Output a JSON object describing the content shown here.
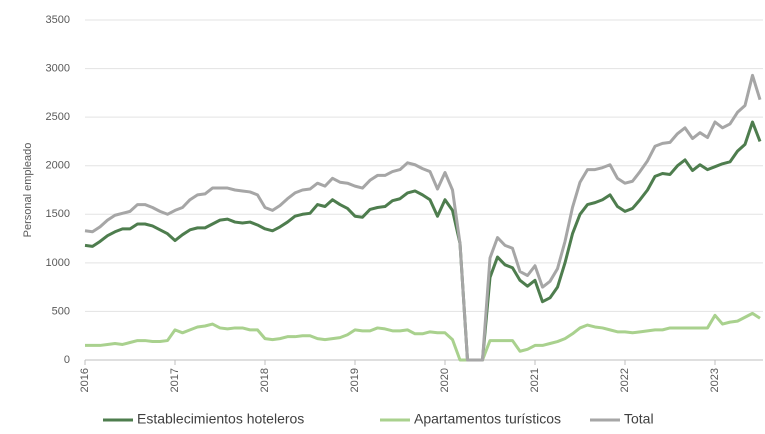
{
  "chart_data": {
    "type": "line",
    "y_label": "Personal empleado",
    "categories": [
      "2016",
      null,
      null,
      null,
      null,
      null,
      null,
      null,
      null,
      null,
      null,
      null,
      "2017",
      null,
      null,
      null,
      null,
      null,
      null,
      null,
      null,
      null,
      null,
      null,
      "2018",
      null,
      null,
      null,
      null,
      null,
      null,
      null,
      null,
      null,
      null,
      null,
      "2019",
      null,
      null,
      null,
      null,
      null,
      null,
      null,
      null,
      null,
      null,
      null,
      "2020",
      null,
      null,
      null,
      null,
      null,
      null,
      null,
      null,
      null,
      null,
      null,
      "2021",
      null,
      null,
      null,
      null,
      null,
      null,
      null,
      null,
      null,
      null,
      null,
      "2022",
      null,
      null,
      null,
      null,
      null,
      null,
      null,
      null,
      null,
      null,
      null,
      "2023",
      null,
      null,
      null,
      null,
      null,
      null
    ],
    "series": [
      {
        "name": "Establecimientos hoteleros",
        "color": "#4e7d4e",
        "values": [
          1180,
          1170,
          1220,
          1280,
          1320,
          1350,
          1350,
          1400,
          1400,
          1380,
          1340,
          1300,
          1230,
          1290,
          1340,
          1360,
          1360,
          1400,
          1440,
          1450,
          1420,
          1410,
          1420,
          1390,
          1350,
          1330,
          1370,
          1420,
          1480,
          1500,
          1510,
          1600,
          1580,
          1650,
          1600,
          1560,
          1480,
          1470,
          1550,
          1570,
          1580,
          1640,
          1660,
          1720,
          1740,
          1700,
          1650,
          1480,
          1650,
          1540,
          1200,
          0,
          0,
          0,
          850,
          1060,
          980,
          950,
          820,
          760,
          820,
          600,
          640,
          750,
          1000,
          1300,
          1500,
          1600,
          1620,
          1650,
          1700,
          1580,
          1530,
          1560,
          1650,
          1750,
          1890,
          1920,
          1910,
          2000,
          2060,
          1950,
          2010,
          1960,
          1990,
          2020,
          2040,
          2150,
          2220,
          2450,
          2250
        ]
      },
      {
        "name": "Apartamentos turísticos",
        "color": "#a9d18e",
        "values": [
          150,
          150,
          150,
          160,
          170,
          160,
          180,
          200,
          200,
          190,
          190,
          200,
          310,
          280,
          310,
          340,
          350,
          370,
          330,
          320,
          330,
          330,
          310,
          310,
          220,
          210,
          220,
          240,
          240,
          250,
          250,
          220,
          210,
          220,
          230,
          260,
          310,
          300,
          300,
          330,
          320,
          300,
          300,
          310,
          270,
          270,
          290,
          280,
          280,
          210,
          0,
          0,
          0,
          0,
          200,
          200,
          200,
          200,
          90,
          110,
          150,
          150,
          170,
          190,
          220,
          270,
          330,
          360,
          340,
          330,
          310,
          290,
          290,
          280,
          290,
          300,
          310,
          310,
          330,
          330,
          330,
          330,
          330,
          330,
          460,
          370,
          390,
          400,
          440,
          480,
          430
        ]
      },
      {
        "name": "Total",
        "color": "#a6a6a6",
        "values": [
          1330,
          1320,
          1370,
          1440,
          1490,
          1510,
          1530,
          1600,
          1600,
          1570,
          1530,
          1500,
          1540,
          1570,
          1650,
          1700,
          1710,
          1770,
          1770,
          1770,
          1750,
          1740,
          1730,
          1700,
          1570,
          1540,
          1590,
          1660,
          1720,
          1750,
          1760,
          1820,
          1790,
          1870,
          1830,
          1820,
          1790,
          1770,
          1850,
          1900,
          1900,
          1940,
          1960,
          2030,
          2010,
          1970,
          1940,
          1760,
          1930,
          1750,
          1200,
          0,
          0,
          0,
          1050,
          1260,
          1180,
          1150,
          910,
          870,
          970,
          750,
          810,
          940,
          1220,
          1570,
          1830,
          1960,
          1960,
          1980,
          2010,
          1870,
          1820,
          1840,
          1940,
          2050,
          2200,
          2230,
          2240,
          2330,
          2390,
          2280,
          2340,
          2290,
          2450,
          2390,
          2430,
          2550,
          2620,
          2930,
          2680
        ]
      }
    ],
    "ylim": [
      0,
      3500
    ],
    "yticks": [
      0,
      500,
      1000,
      1500,
      2000,
      2500,
      3000,
      3500
    ],
    "grid": true,
    "legend": "bottom"
  }
}
